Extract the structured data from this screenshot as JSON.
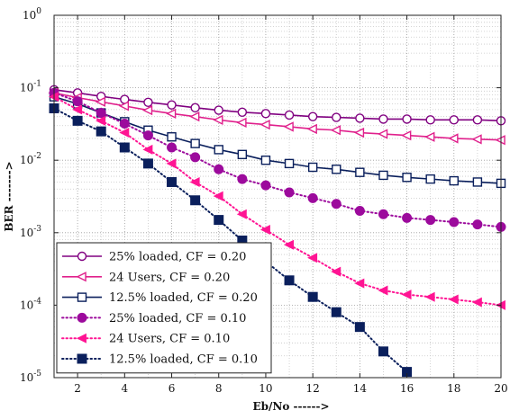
{
  "chart_data": {
    "type": "line",
    "xlabel": "Eb/No ------>",
    "ylabel": "BER ------->",
    "xlim": [
      1,
      20
    ],
    "ylim": [
      1e-05,
      1
    ],
    "yscale": "log",
    "grid": true,
    "legend_position": "bottom-left",
    "x_ticks": [
      2,
      4,
      6,
      8,
      10,
      12,
      14,
      16,
      18,
      20
    ],
    "y_ticks": [
      {
        "base": "10",
        "exp": "0",
        "value": 1
      },
      {
        "base": "10",
        "exp": "-1",
        "value": 0.1
      },
      {
        "base": "10",
        "exp": "-2",
        "value": 0.01
      },
      {
        "base": "10",
        "exp": "-3",
        "value": 0.001
      },
      {
        "base": "10",
        "exp": "-4",
        "value": 0.0001
      },
      {
        "base": "10",
        "exp": "-5",
        "value": 1e-05
      }
    ],
    "series": [
      {
        "name": "25% loaded, CF = 0.20",
        "color": "#800080",
        "line": "solid",
        "marker": "circle-open",
        "x": [
          1,
          2,
          3,
          4,
          5,
          6,
          7,
          8,
          9,
          10,
          11,
          12,
          13,
          14,
          15,
          16,
          17,
          18,
          19,
          20
        ],
        "y": [
          0.094,
          0.085,
          0.076,
          0.069,
          0.063,
          0.058,
          0.053,
          0.049,
          0.046,
          0.044,
          0.042,
          0.04,
          0.039,
          0.038,
          0.037,
          0.037,
          0.036,
          0.036,
          0.036,
          0.035
        ]
      },
      {
        "name": "24 Users, CF = 0.20",
        "color": "#e0208c",
        "line": "solid",
        "marker": "triangle-left-open",
        "x": [
          1,
          2,
          3,
          4,
          5,
          6,
          7,
          8,
          9,
          10,
          11,
          12,
          13,
          14,
          15,
          16,
          17,
          18,
          19,
          20
        ],
        "y": [
          0.085,
          0.073,
          0.064,
          0.056,
          0.049,
          0.044,
          0.04,
          0.036,
          0.033,
          0.031,
          0.029,
          0.027,
          0.026,
          0.024,
          0.023,
          0.022,
          0.021,
          0.02,
          0.0195,
          0.019
        ]
      },
      {
        "name": "12.5% loaded, CF = 0.20",
        "color": "#0a1f5c",
        "line": "solid",
        "marker": "square-open",
        "x": [
          1,
          2,
          3,
          4,
          5,
          6,
          7,
          8,
          9,
          10,
          11,
          12,
          13,
          14,
          15,
          16,
          17,
          18,
          19,
          20
        ],
        "y": [
          0.075,
          0.06,
          0.045,
          0.034,
          0.026,
          0.021,
          0.017,
          0.014,
          0.012,
          0.01,
          0.009,
          0.008,
          0.0075,
          0.0068,
          0.0062,
          0.0058,
          0.0055,
          0.0052,
          0.005,
          0.0048
        ]
      },
      {
        "name": "25% loaded, CF = 0.10",
        "color": "#9c0a9c",
        "line": "dotted",
        "marker": "circle-filled",
        "x": [
          1,
          2,
          3,
          4,
          5,
          6,
          7,
          8,
          9,
          10,
          11,
          12,
          13,
          14,
          15,
          16,
          17,
          18,
          19,
          20
        ],
        "y": [
          0.085,
          0.065,
          0.045,
          0.032,
          0.022,
          0.015,
          0.011,
          0.0075,
          0.0055,
          0.0045,
          0.0036,
          0.003,
          0.0025,
          0.002,
          0.0018,
          0.0016,
          0.0015,
          0.0014,
          0.0013,
          0.0012
        ]
      },
      {
        "name": "24 Users, CF = 0.10",
        "color": "#ff1493",
        "line": "dotted",
        "marker": "triangle-left-filled",
        "x": [
          1,
          2,
          3,
          4,
          5,
          6,
          7,
          8,
          9,
          10,
          11,
          12,
          13,
          14,
          15,
          16,
          17,
          18,
          19,
          20
        ],
        "y": [
          0.075,
          0.05,
          0.035,
          0.024,
          0.014,
          0.009,
          0.005,
          0.0032,
          0.0018,
          0.0011,
          0.00068,
          0.00045,
          0.00029,
          0.0002,
          0.00016,
          0.00014,
          0.00013,
          0.00012,
          0.00011,
          0.0001
        ]
      },
      {
        "name": "12.5% loaded, CF = 0.10",
        "color": "#0a1f5c",
        "line": "dotted",
        "marker": "square-filled",
        "x": [
          1,
          2,
          3,
          4,
          5,
          6,
          7,
          8,
          9,
          10,
          11,
          12,
          13,
          14,
          15,
          16
        ],
        "y": [
          0.052,
          0.035,
          0.025,
          0.015,
          0.009,
          0.005,
          0.0028,
          0.0015,
          0.00078,
          0.0004,
          0.00022,
          0.00013,
          8e-05,
          5e-05,
          2.3e-05,
          1.2e-05
        ]
      }
    ]
  }
}
